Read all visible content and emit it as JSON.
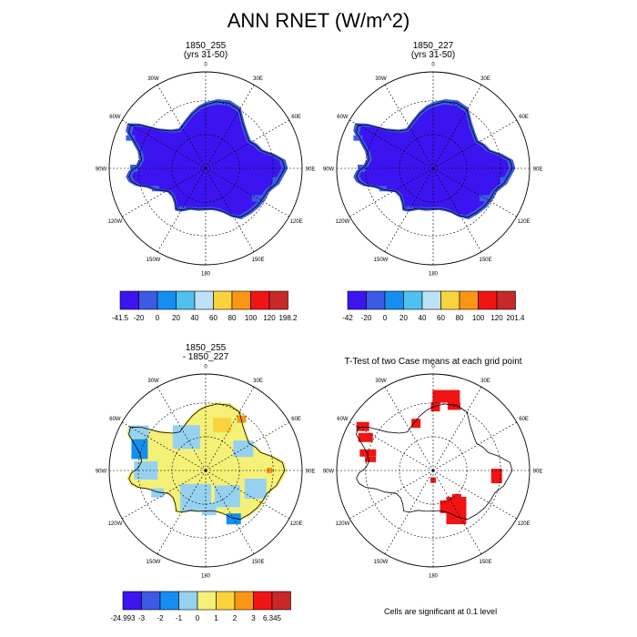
{
  "title": "ANN RNET (W/m^2)",
  "panels": [
    {
      "id": "p1",
      "title": "1850_255",
      "subtitle": "(yrs 31-50)",
      "fill": "base"
    },
    {
      "id": "p2",
      "title": "1850_227",
      "subtitle": "(yrs 31-50)",
      "fill": "base"
    },
    {
      "id": "p3",
      "title": "1850_255",
      "subtitle": "- 1850_227",
      "fill": "diff"
    },
    {
      "id": "p4",
      "title": "T-Test of two Case means at each grid point",
      "subtitle": "",
      "fill": "ttest"
    }
  ],
  "map": {
    "lon_labels": [
      "0",
      "30E",
      "60E",
      "90E",
      "120E",
      "150E",
      "180",
      "150W",
      "120W",
      "90W",
      "60W",
      "30W"
    ]
  },
  "colorbars": [
    {
      "id": "cb1",
      "colors": [
        "#3c14f0",
        "#3c5ae6",
        "#148ef0",
        "#50c0f0",
        "#bce2f8",
        "#fad23c",
        "#fa9614",
        "#f01414",
        "#c82828"
      ],
      "labels": [
        "-41.5",
        "-20",
        "0",
        "20",
        "40",
        "60",
        "80",
        "100",
        "120",
        "198.2"
      ]
    },
    {
      "id": "cb2",
      "colors": [
        "#3c14f0",
        "#3c5ae6",
        "#148ef0",
        "#50c0f0",
        "#bce2f8",
        "#fad23c",
        "#fa9614",
        "#f01414",
        "#c82828"
      ],
      "labels": [
        "-42",
        "-20",
        "0",
        "20",
        "40",
        "60",
        "80",
        "100",
        "120",
        "201.4"
      ]
    },
    {
      "id": "cb3",
      "colors": [
        "#3c14f0",
        "#3c5ae6",
        "#148ef0",
        "#96d2f0",
        "#f5f078",
        "#fad23c",
        "#fa9614",
        "#f01414",
        "#c82828"
      ],
      "labels": [
        "-24.993",
        "-3",
        "-2",
        "-1",
        "0",
        "1",
        "2",
        "3",
        "6.345"
      ]
    }
  ],
  "footnote": "Cells are significant at 0.1 level"
}
